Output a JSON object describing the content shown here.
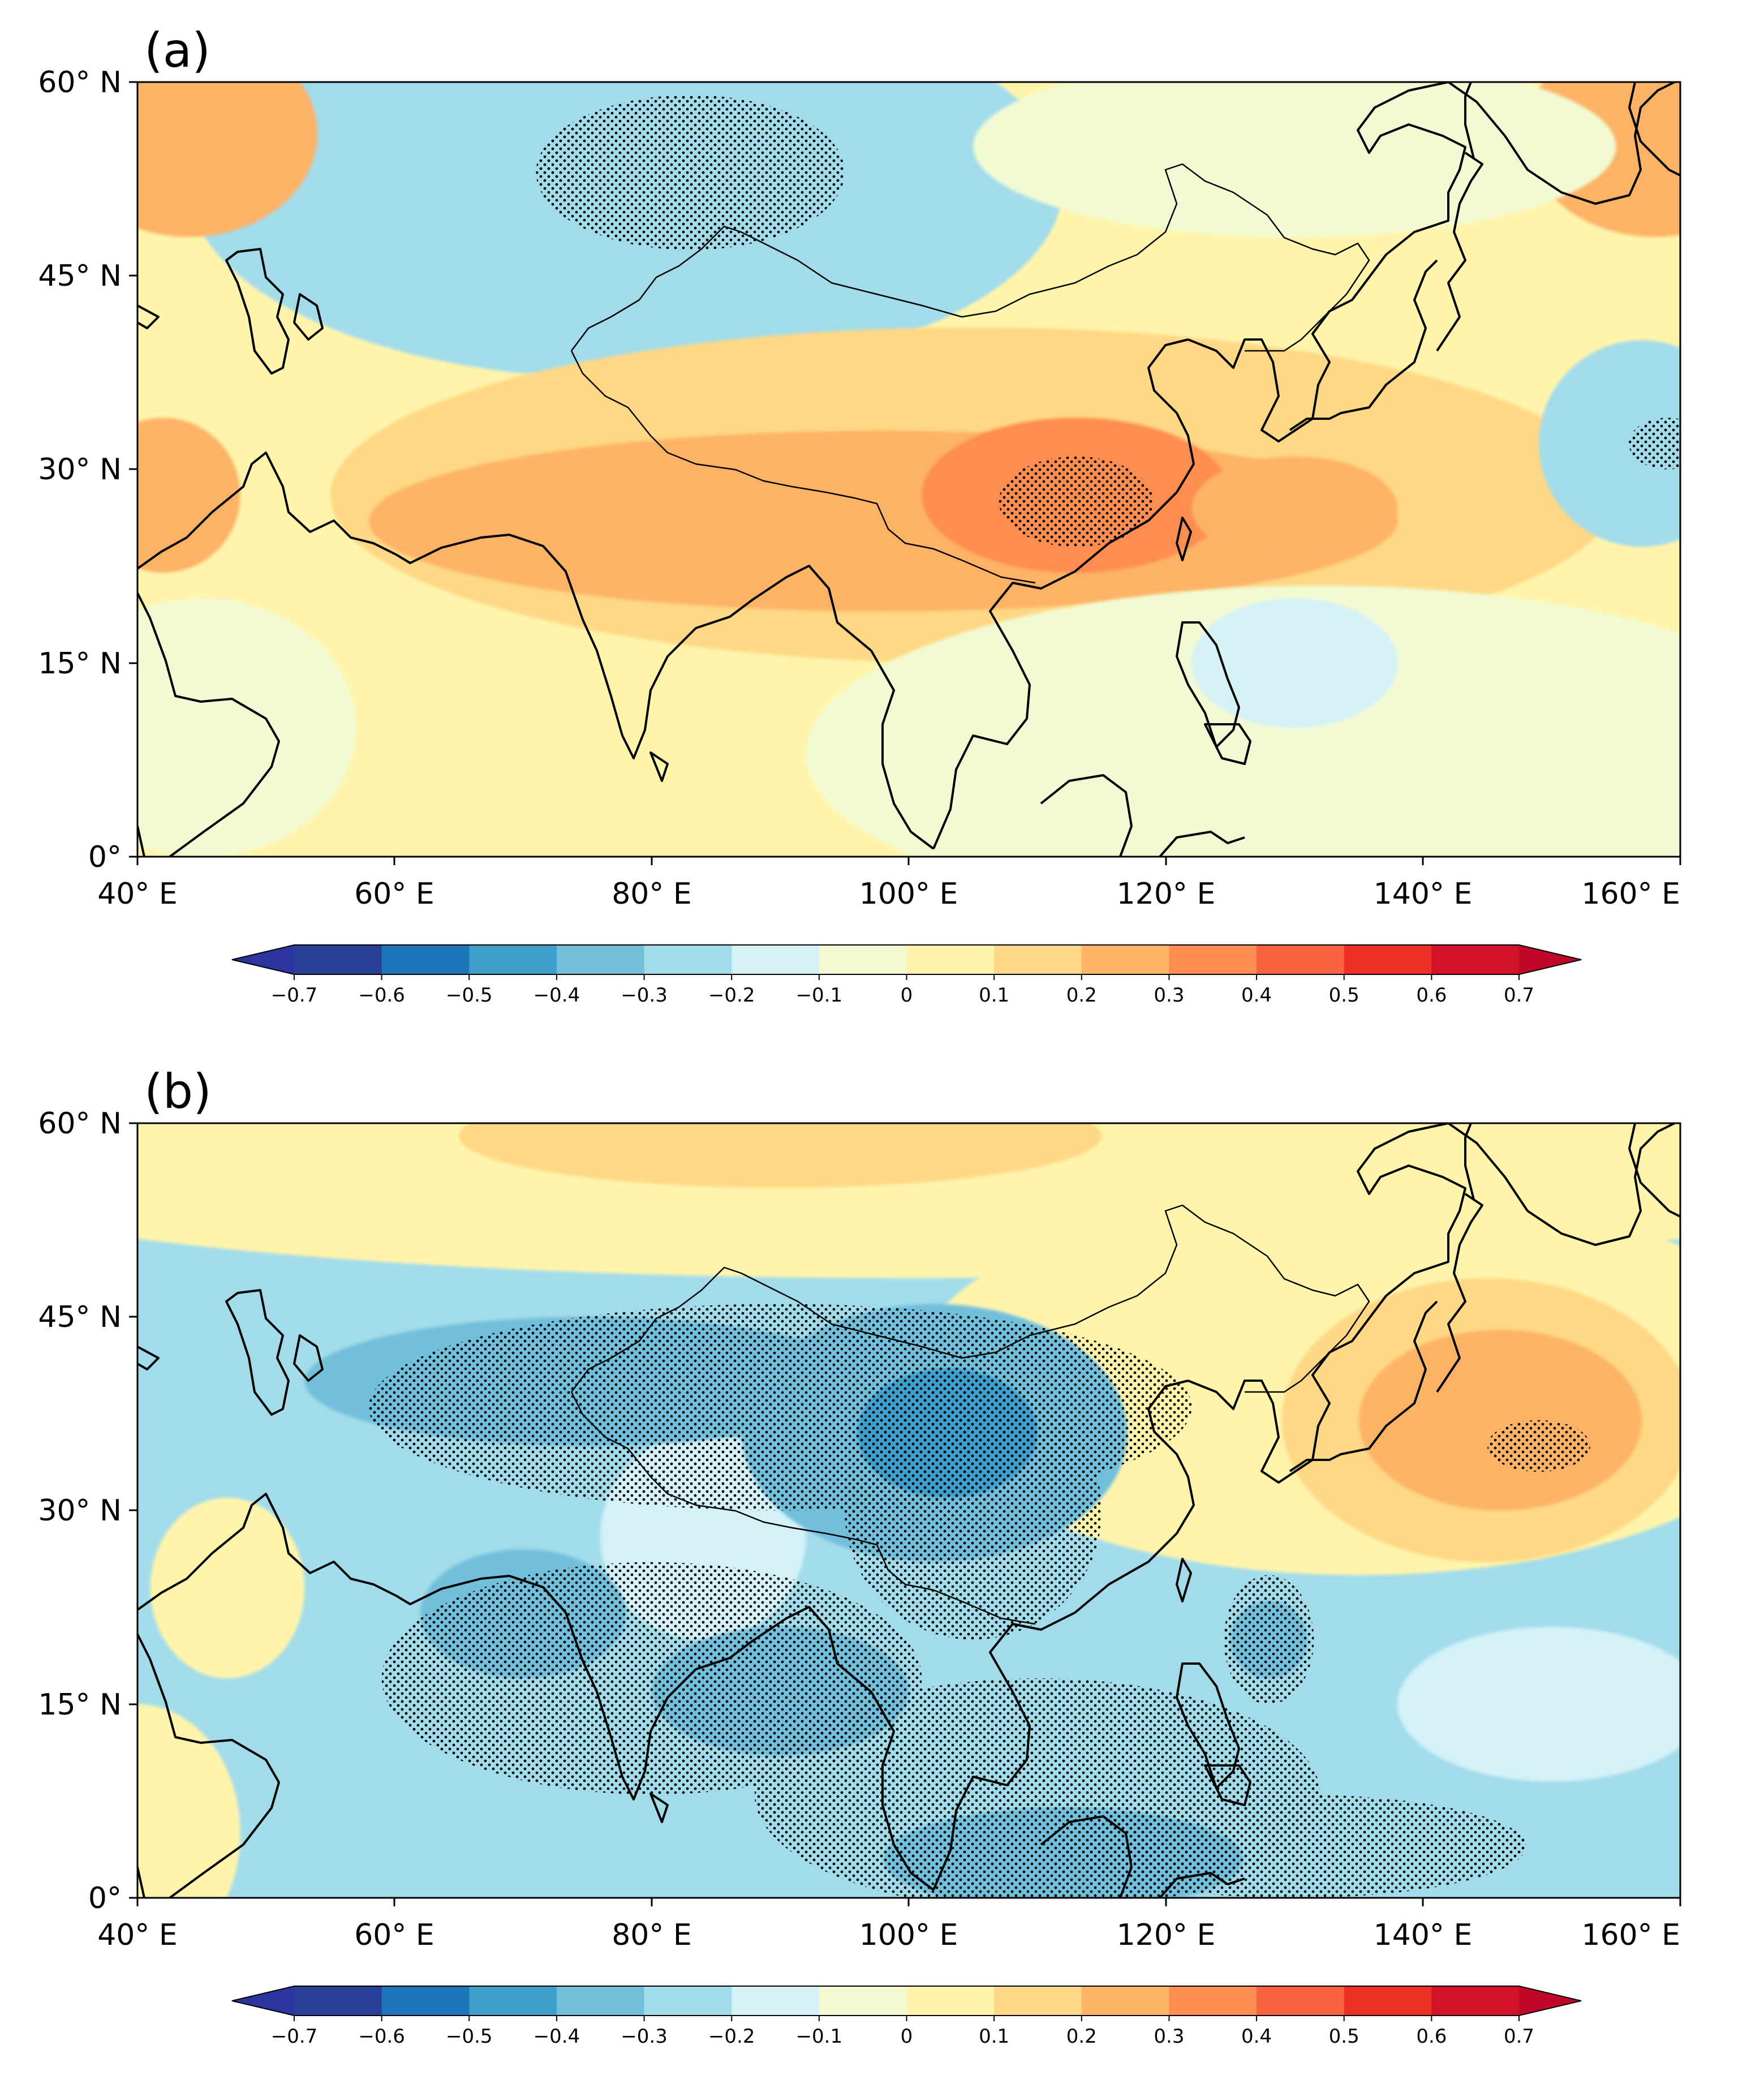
{
  "figure": {
    "panels": [
      {
        "id": "a",
        "label": "(a)",
        "lat_labels": [
          "60° N",
          "45° N",
          "30° N",
          "15° N",
          "0°"
        ],
        "lon_labels": [
          "40° E",
          "60° E",
          "80° E",
          "100° E",
          "120° E",
          "140° E",
          "160° E"
        ],
        "background_level": 0.05,
        "anomalies": [
          {
            "lon": 82,
            "lat": 53,
            "level": -0.35,
            "rx": 28,
            "ry": 11
          },
          {
            "lon": 78,
            "lat": 52,
            "level": -0.25,
            "rx": 34,
            "ry": 15
          },
          {
            "lon": 44,
            "lat": 56,
            "level": 0.25,
            "rx": 10,
            "ry": 8
          },
          {
            "lon": 42,
            "lat": 28,
            "level": 0.25,
            "rx": 6,
            "ry": 6
          },
          {
            "lon": 105,
            "lat": 28,
            "level": 0.15,
            "rx": 50,
            "ry": 13
          },
          {
            "lon": 98,
            "lat": 26,
            "level": 0.25,
            "rx": 40,
            "ry": 7
          },
          {
            "lon": 113,
            "lat": 28,
            "level": 0.3,
            "rx": 12,
            "ry": 6
          },
          {
            "lon": 113,
            "lat": 27,
            "level": 0.35,
            "rx": 4,
            "ry": 3
          },
          {
            "lon": 130,
            "lat": 27,
            "level": 0.25,
            "rx": 8,
            "ry": 4
          },
          {
            "lon": 157,
            "lat": 32,
            "level": -0.25,
            "rx": 8,
            "ry": 8
          },
          {
            "lon": 132,
            "lat": 8,
            "level": -0.05,
            "rx": 40,
            "ry": 13
          },
          {
            "lon": 130,
            "lat": 15,
            "level": -0.15,
            "rx": 8,
            "ry": 5
          },
          {
            "lon": 158,
            "lat": 56,
            "level": 0.25,
            "rx": 10,
            "ry": 8
          },
          {
            "lon": 130,
            "lat": 55,
            "level": -0.05,
            "rx": 25,
            "ry": 7
          },
          {
            "lon": 45,
            "lat": 10,
            "level": -0.05,
            "rx": 12,
            "ry": 10
          }
        ],
        "stipples": [
          {
            "lon": 83,
            "lat": 53,
            "rx": 12,
            "ry": 6
          },
          {
            "lon": 113,
            "lat": 27.5,
            "rx": 6,
            "ry": 3.5
          },
          {
            "lon": 159,
            "lat": 32,
            "rx": 3,
            "ry": 2
          }
        ]
      },
      {
        "id": "b",
        "label": "(b)",
        "lat_labels": [
          "60° N",
          "45° N",
          "30° N",
          "15° N",
          "0°"
        ],
        "lon_labels": [
          "40° E",
          "60° E",
          "80° E",
          "100° E",
          "120° E",
          "140° E",
          "160° E"
        ],
        "background_level": -0.25,
        "anomalies": [
          {
            "lon": 100,
            "lat": 57,
            "level": 0.05,
            "rx": 80,
            "ry": 9
          },
          {
            "lon": 90,
            "lat": 59,
            "level": 0.15,
            "rx": 25,
            "ry": 4
          },
          {
            "lon": 135,
            "lat": 40,
            "level": 0.05,
            "rx": 35,
            "ry": 15
          },
          {
            "lon": 145,
            "lat": 37,
            "level": 0.15,
            "rx": 16,
            "ry": 11
          },
          {
            "lon": 146,
            "lat": 37,
            "level": 0.25,
            "rx": 11,
            "ry": 7
          },
          {
            "lon": 40,
            "lat": 5,
            "level": 0.05,
            "rx": 8,
            "ry": 10
          },
          {
            "lon": 47,
            "lat": 24,
            "level": 0.05,
            "rx": 6,
            "ry": 7
          },
          {
            "lon": 84,
            "lat": 28,
            "level": -0.15,
            "rx": 8,
            "ry": 8
          },
          {
            "lon": 75,
            "lat": 40,
            "level": -0.35,
            "rx": 22,
            "ry": 5
          },
          {
            "lon": 102,
            "lat": 36,
            "level": -0.35,
            "rx": 15,
            "ry": 10
          },
          {
            "lon": 103,
            "lat": 36,
            "level": -0.45,
            "rx": 7,
            "ry": 5
          },
          {
            "lon": 70,
            "lat": 22,
            "level": -0.35,
            "rx": 8,
            "ry": 5
          },
          {
            "lon": 90,
            "lat": 16,
            "level": -0.35,
            "rx": 10,
            "ry": 5
          },
          {
            "lon": 112,
            "lat": 3,
            "level": -0.35,
            "rx": 14,
            "ry": 4
          },
          {
            "lon": 128,
            "lat": 20,
            "level": -0.35,
            "rx": 3,
            "ry": 3
          },
          {
            "lon": 150,
            "lat": 15,
            "level": -0.15,
            "rx": 12,
            "ry": 6
          }
        ],
        "stipples": [
          {
            "lon": 90,
            "lat": 38,
            "rx": 32,
            "ry": 8
          },
          {
            "lon": 105,
            "lat": 30,
            "rx": 10,
            "ry": 10
          },
          {
            "lon": 80,
            "lat": 17,
            "rx": 21,
            "ry": 9
          },
          {
            "lon": 110,
            "lat": 8,
            "rx": 22,
            "ry": 9
          },
          {
            "lon": 130,
            "lat": 4,
            "rx": 18,
            "ry": 4
          },
          {
            "lon": 128,
            "lat": 20,
            "rx": 3.5,
            "ry": 5
          },
          {
            "lon": 149,
            "lat": 35,
            "rx": 4,
            "ry": 2
          }
        ]
      }
    ]
  },
  "colorbar": {
    "ticks": [
      "−0.7",
      "−0.6",
      "−0.5",
      "−0.4",
      "−0.3",
      "−0.2",
      "−0.1",
      "0",
      "0.1",
      "0.2",
      "0.3",
      "0.4",
      "0.5",
      "0.6",
      "0.7"
    ],
    "colors": [
      "#2a3f98",
      "#1f75b9",
      "#3e9fcd",
      "#72bfdb",
      "#a2dcea",
      "#d4f1f8",
      "#f1fad3",
      "#fff4ac",
      "#fed884",
      "#fdb366",
      "#fd8d51",
      "#fb6240",
      "#ee3127",
      "#d11227"
    ],
    "under_color": "#2c34a0",
    "over_color": "#c10627"
  }
}
